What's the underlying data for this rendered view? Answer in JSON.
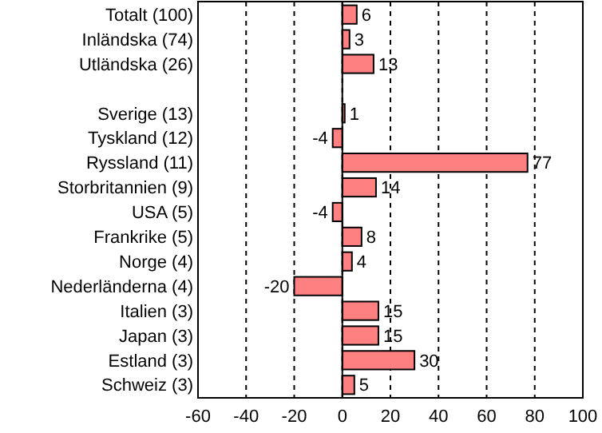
{
  "chart_data": {
    "type": "bar",
    "orientation": "horizontal",
    "categories": [
      "Totalt (100)",
      "Inländska (74)",
      "Utländska (26)",
      null,
      "Sverige (13)",
      "Tyskland (12)",
      "Ryssland (11)",
      "Storbritannien (9)",
      "USA (5)",
      "Frankrike (5)",
      "Norge (4)",
      "Nederländerna (4)",
      "Italien (3)",
      "Japan (3)",
      "Estland (3)",
      "Schweiz (3)"
    ],
    "values": [
      6,
      3,
      13,
      null,
      1,
      -4,
      77,
      14,
      -4,
      8,
      4,
      -20,
      15,
      15,
      30,
      5
    ],
    "color": "#ff8080",
    "xlim": [
      -60,
      100
    ],
    "xticks": [
      -60,
      -40,
      -20,
      0,
      20,
      40,
      60,
      80,
      100
    ],
    "grid": "x",
    "data_labels": true
  }
}
